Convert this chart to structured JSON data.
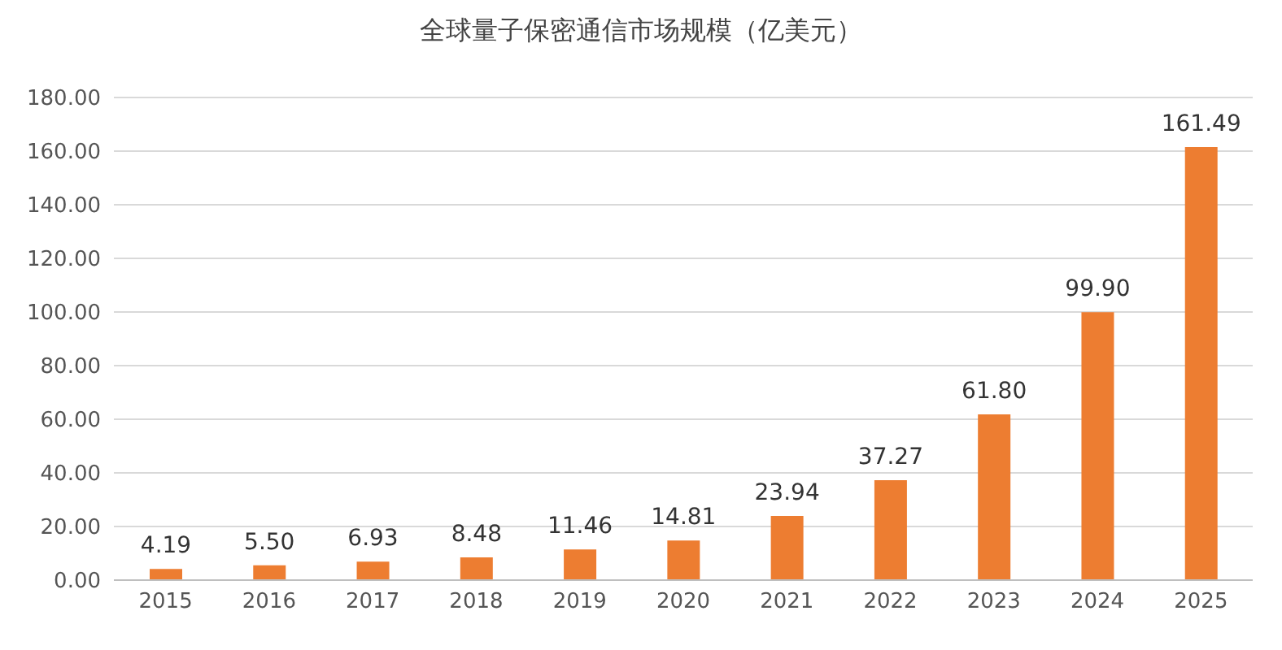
{
  "chart_data": {
    "type": "bar",
    "title": "全球量子保密通信市场规模（亿美元）",
    "categories": [
      "2015",
      "2016",
      "2017",
      "2018",
      "2019",
      "2020",
      "2021",
      "2022",
      "2023",
      "2024",
      "2025"
    ],
    "values": [
      4.19,
      5.5,
      6.93,
      8.48,
      11.46,
      14.81,
      23.94,
      37.27,
      61.8,
      99.9,
      161.49
    ],
    "value_labels": [
      "4.19",
      "5.50",
      "6.93",
      "8.48",
      "11.46",
      "14.81",
      "23.94",
      "37.27",
      "61.80",
      "99.90",
      "161.49"
    ],
    "color": "#ed7d31",
    "ylim": [
      0,
      180
    ],
    "yticks": [
      {
        "value": 0,
        "label": "0.00"
      },
      {
        "value": 20,
        "label": "20.00"
      },
      {
        "value": 40,
        "label": "40.00"
      },
      {
        "value": 60,
        "label": "60.00"
      },
      {
        "value": 80,
        "label": "80.00"
      },
      {
        "value": 100,
        "label": "100.00"
      },
      {
        "value": 120,
        "label": "120.00"
      },
      {
        "value": 140,
        "label": "140.00"
      },
      {
        "value": 160,
        "label": "160.00"
      },
      {
        "value": 180,
        "label": "180.00"
      }
    ],
    "grid": "y"
  }
}
